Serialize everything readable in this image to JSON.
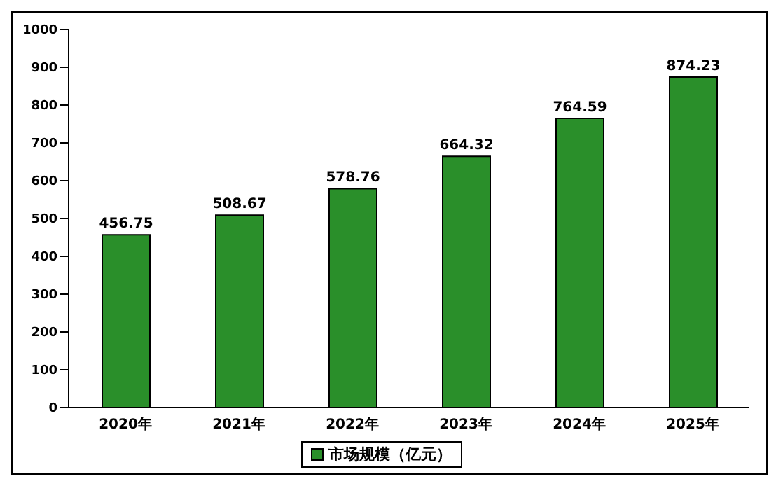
{
  "chart_data": {
    "type": "bar",
    "categories": [
      "2020年",
      "2021年",
      "2022年",
      "2023年",
      "2024年",
      "2025年"
    ],
    "series": [
      {
        "name": "市场规模（亿元）",
        "color": "#2a8f2a",
        "values": [
          456.75,
          508.67,
          578.76,
          664.32,
          764.59,
          874.23
        ]
      }
    ],
    "ylim": [
      0,
      1000
    ],
    "yticks": [
      0,
      100,
      200,
      300,
      400,
      500,
      600,
      700,
      800,
      900,
      1000
    ],
    "data_labels": true,
    "grid": false,
    "legend": "bottom"
  }
}
